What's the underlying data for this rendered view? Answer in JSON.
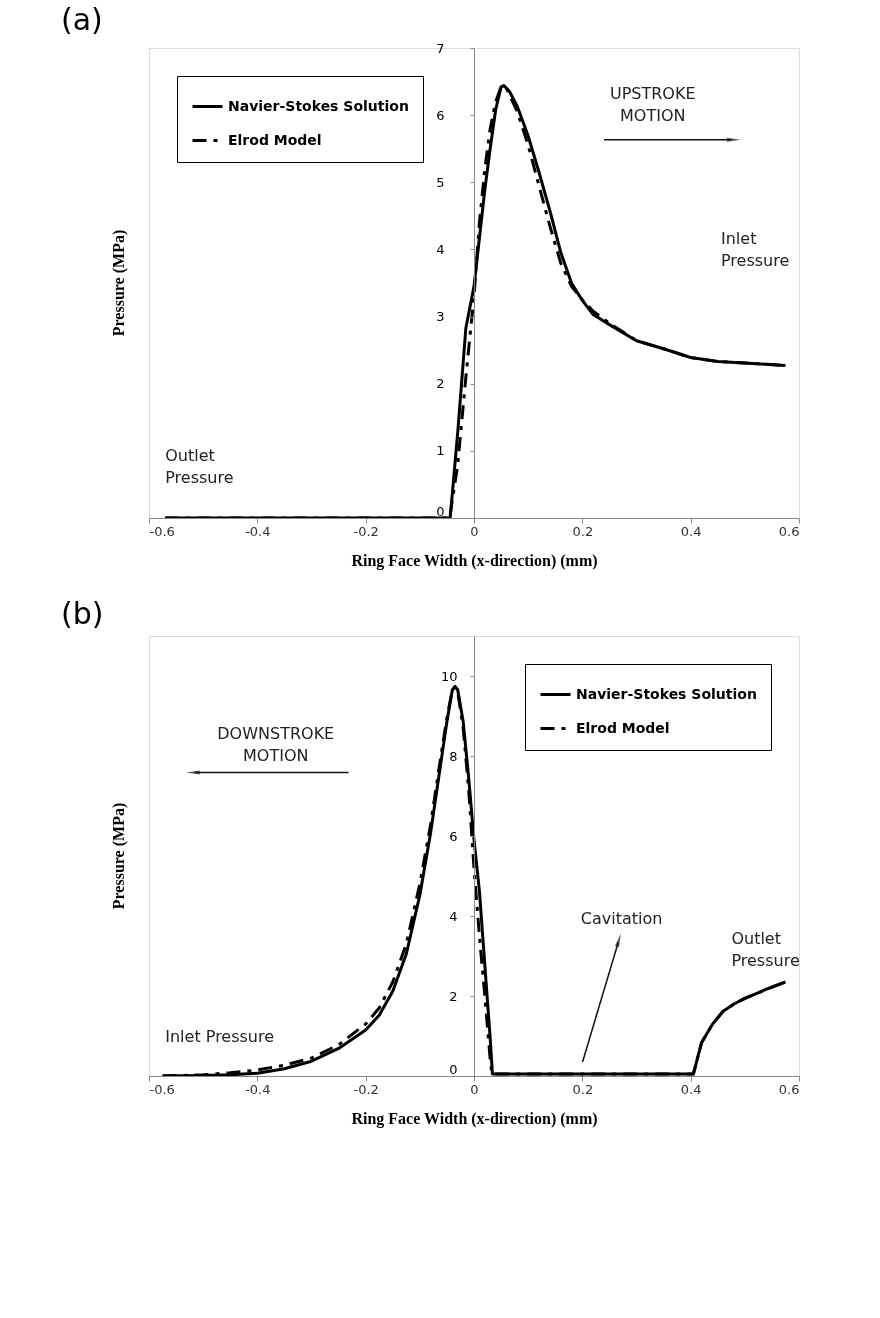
{
  "chart_data": [
    {
      "type": "line",
      "title": "(a)",
      "xlabel": "Ring  Face Width  (x-direction)  (mm)",
      "ylabel": "Pressure (MPa)",
      "xlim": [
        -0.6,
        0.6
      ],
      "xticks": [
        -0.6,
        -0.4,
        -0.2,
        0,
        0.2,
        0.4,
        0.6
      ],
      "ylim": [
        0,
        7
      ],
      "yticks": [
        0,
        1,
        2,
        3,
        4,
        5,
        6,
        7
      ],
      "grid": false,
      "legend": "top left",
      "annotations": [
        "Outlet Pressure",
        "UPSTROKE MOTION",
        "Inlet Pressure"
      ],
      "series": [
        {
          "name": "Navier-Stokes Solution",
          "color": "#000000",
          "line_style": "solid",
          "x": [
            -0.57,
            -0.044,
            -0.03,
            -0.015,
            0,
            0.01,
            0.02,
            0.03,
            0.04,
            0.05,
            0.055,
            0.065,
            0.08,
            0.1,
            0.12,
            0.14,
            0.16,
            0.18,
            0.2,
            0.22,
            0.25,
            0.3,
            0.35,
            0.4,
            0.45,
            0.5,
            0.575
          ],
          "values": [
            0,
            0,
            1.28,
            2.83,
            3.45,
            4.17,
            4.89,
            5.51,
            6.08,
            6.42,
            6.44,
            6.36,
            6.13,
            5.69,
            5.15,
            4.58,
            3.96,
            3.5,
            3.24,
            3.03,
            2.88,
            2.64,
            2.52,
            2.39,
            2.33,
            2.31,
            2.27
          ]
        },
        {
          "name": "Elrod Model",
          "color": "#000000",
          "line_style": "dashed",
          "x": [
            -0.57,
            -0.045,
            -0.03,
            -0.015,
            0,
            0.01,
            0.02,
            0.03,
            0.04,
            0.05,
            0.06,
            0.08,
            0.1,
            0.12,
            0.14,
            0.16,
            0.18,
            0.2,
            0.22,
            0.25,
            0.3,
            0.35,
            0.4,
            0.45,
            0.5,
            0.575
          ],
          "values": [
            0,
            0,
            0.8,
            2.1,
            3.3,
            4.4,
            5.2,
            5.8,
            6.2,
            6.42,
            6.4,
            6.05,
            5.55,
            4.95,
            4.35,
            3.8,
            3.45,
            3.25,
            3.08,
            2.9,
            2.64,
            2.52,
            2.39,
            2.33,
            2.31,
            2.27
          ]
        }
      ]
    },
    {
      "type": "line",
      "title": "(b)",
      "xlabel": "Ring  Face Width  (x-direction)  (mm)",
      "ylabel": "Pressure (MPa)",
      "xlim": [
        -0.6,
        0.6
      ],
      "xticks": [
        -0.6,
        -0.4,
        -0.2,
        0,
        0.2,
        0.4,
        0.6
      ],
      "ylim": [
        0,
        11
      ],
      "yticks": [
        0,
        2,
        4,
        6,
        8,
        10
      ],
      "grid": false,
      "legend": "top right",
      "annotations": [
        "DOWNSTROKE MOTION",
        "Inlet Pressure",
        "Cavitation",
        "Outlet Pressure"
      ],
      "series": [
        {
          "name": "Navier-Stokes Solution",
          "color": "#000000",
          "line_style": "solid",
          "x": [
            -0.575,
            -0.5,
            -0.45,
            -0.4,
            -0.35,
            -0.3,
            -0.25,
            -0.2,
            -0.175,
            -0.15,
            -0.125,
            -0.1,
            -0.08,
            -0.06,
            -0.05,
            -0.04,
            -0.035,
            -0.03,
            -0.02,
            -0.01,
            0,
            0.01,
            0.02,
            0.03,
            0.034,
            0.405,
            0.42,
            0.44,
            0.46,
            0.48,
            0.5,
            0.54,
            0.575
          ],
          "values": [
            0,
            0.01,
            0.03,
            0.07,
            0.18,
            0.37,
            0.69,
            1.15,
            1.52,
            2.12,
            3.05,
            4.52,
            6.09,
            7.94,
            8.86,
            9.65,
            9.74,
            9.65,
            8.86,
            7.48,
            5.91,
            4.62,
            2.77,
            0.92,
            0.05,
            0.05,
            0.83,
            1.29,
            1.62,
            1.8,
            1.94,
            2.17,
            2.35
          ]
        },
        {
          "name": "Elrod Model",
          "color": "#000000",
          "line_style": "dashed",
          "x": [
            -0.575,
            -0.5,
            -0.45,
            -0.4,
            -0.35,
            -0.3,
            -0.25,
            -0.2,
            -0.175,
            -0.15,
            -0.125,
            -0.1,
            -0.08,
            -0.06,
            -0.05,
            -0.04,
            -0.035,
            -0.03,
            -0.02,
            -0.01,
            0,
            0.01,
            0.02,
            0.03,
            0.033,
            0.405,
            0.42,
            0.44,
            0.46,
            0.48,
            0.5,
            0.54,
            0.575
          ],
          "values": [
            0,
            0.03,
            0.08,
            0.15,
            0.27,
            0.45,
            0.78,
            1.3,
            1.7,
            2.35,
            3.3,
            4.8,
            6.3,
            8.1,
            8.95,
            9.65,
            9.72,
            9.6,
            8.7,
            7.2,
            5.2,
            3.5,
            2.0,
            0.4,
            0.05,
            0.05,
            0.83,
            1.29,
            1.62,
            1.8,
            1.94,
            2.17,
            2.35
          ]
        }
      ]
    }
  ]
}
